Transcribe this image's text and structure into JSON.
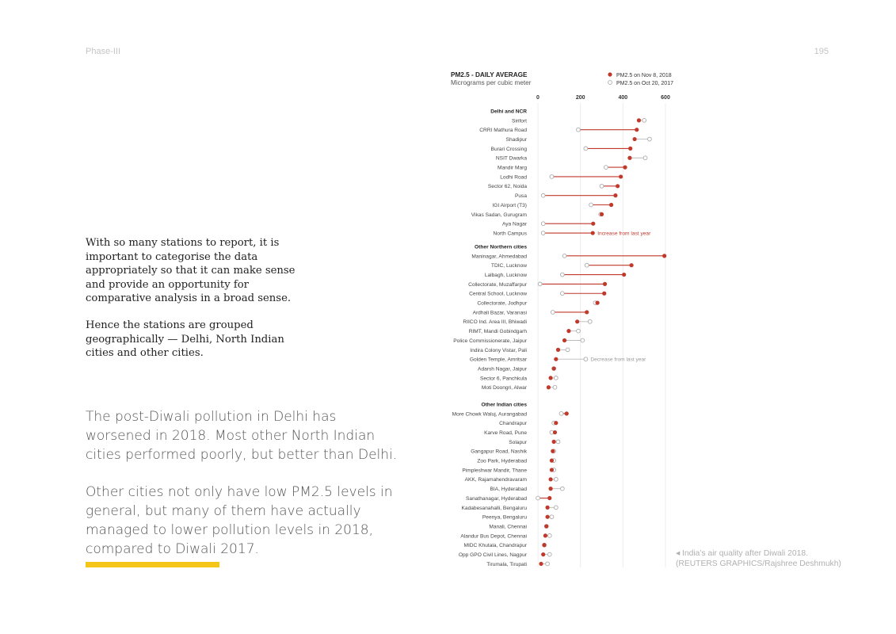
{
  "page": {
    "header_left": "Phase-III",
    "header_right": "195",
    "paragraph1": "With so many stations to report, it is important to categorise the data appropriately so that it can make sense and provide an opportunity for comparative analysis in a broad sense.",
    "paragraph2": "Hence the stations are grouped geographically — Delhi, North Indian cities and other cities.",
    "paragraph3": "The post-Diwali pollution in Delhi has worsened in 2018. Most other North Indian cities performed poorly, but better than Delhi.",
    "paragraph4": "Other cities not only have low PM2.5 levels in general, but many of them have actually managed to lower pollution levels in 2018, compared to Diwali 2017.",
    "caption_line1": "◂ India’s air quality after Diwali 2018.",
    "caption_line2": "(REUTERS GRAPHICS/Rajshree Deshmukh)",
    "colors": {
      "series_2018": "#c0392b",
      "series_2017": "#aaaaaa",
      "accent_bar": "#f5c518"
    }
  },
  "chart_data": {
    "type": "dumbbell",
    "title": "PM2.5 - DAILY AVERAGE",
    "subtitle": "Micrograms per cubic meter",
    "xlim": [
      0,
      600
    ],
    "xticks": [
      0,
      200,
      400,
      600
    ],
    "legend_position": "top-right",
    "series": [
      {
        "name": "PM2.5 on Nov 8, 2018",
        "color": "#c0392b",
        "filled": true
      },
      {
        "name": "PM2.5 on Oct 20, 2017",
        "color": "#aaaaaa",
        "filled": false
      }
    ],
    "annotations": [
      {
        "text": "Increase from last year",
        "station": "North Campus",
        "color": "#c0392b"
      },
      {
        "text": "Decrease from last year",
        "station": "Golden Temple, Amritsar",
        "color": "#999999"
      }
    ],
    "groups": [
      {
        "name": "Delhi and NCR",
        "stations": [
          {
            "name": "Sirifort",
            "y2018": 475,
            "y2017": 500
          },
          {
            "name": "CRRI Mathura Road",
            "y2018": 465,
            "y2017": 190
          },
          {
            "name": "Shadipur",
            "y2018": 455,
            "y2017": 525
          },
          {
            "name": "Burari Crossing",
            "y2018": 435,
            "y2017": 225
          },
          {
            "name": "NSIT Dwarka",
            "y2018": 432,
            "y2017": 505
          },
          {
            "name": "Mandir Marg",
            "y2018": 410,
            "y2017": 320
          },
          {
            "name": "Lodhi Road",
            "y2018": 390,
            "y2017": 65
          },
          {
            "name": "Sector 62, Noida",
            "y2018": 375,
            "y2017": 300
          },
          {
            "name": "Pusa",
            "y2018": 365,
            "y2017": 25
          },
          {
            "name": "IGI Airport (T3)",
            "y2018": 345,
            "y2017": 250
          },
          {
            "name": "Vikas Sadan, Gurugram",
            "y2018": 300,
            "y2017": 295
          },
          {
            "name": "Aya Nagar",
            "y2018": 260,
            "y2017": 25
          },
          {
            "name": "North Campus",
            "y2018": 258,
            "y2017": 25
          }
        ]
      },
      {
        "name": "Other Northern cities",
        "stations": [
          {
            "name": "Maninagar, Ahmedabad",
            "y2018": 595,
            "y2017": 125
          },
          {
            "name": "TDIC, Lucknow",
            "y2018": 440,
            "y2017": 230
          },
          {
            "name": "Lalbagh, Lucknow",
            "y2018": 405,
            "y2017": 115
          },
          {
            "name": "Collectorate, Muzaffarpur",
            "y2018": 315,
            "y2017": 10
          },
          {
            "name": "Central School, Lucknow",
            "y2018": 312,
            "y2017": 115
          },
          {
            "name": "Collectorate, Jodhpur",
            "y2018": 280,
            "y2017": 270
          },
          {
            "name": "Ardhali Bazar, Varanasi",
            "y2018": 230,
            "y2017": 70
          },
          {
            "name": "RIICO Ind. Area III, Bhiwadi",
            "y2018": 185,
            "y2017": 245
          },
          {
            "name": "RIMT, Mandi Gobindgarh",
            "y2018": 145,
            "y2017": 190
          },
          {
            "name": "Police Commissionerate, Jaipur",
            "y2018": 125,
            "y2017": 210
          },
          {
            "name": "Indira Colony Vistar, Pali",
            "y2018": 95,
            "y2017": 140
          },
          {
            "name": "Golden Temple, Amritsar",
            "y2018": 85,
            "y2017": 225
          },
          {
            "name": "Adarsh Nagar, Jaipur",
            "y2018": 75,
            "y2017": 75
          },
          {
            "name": "Sector 6, Panchkula",
            "y2018": 60,
            "y2017": 85
          },
          {
            "name": "Moti Doongri, Alwar",
            "y2018": 50,
            "y2017": 80
          }
        ]
      },
      {
        "name": "Other Indian cities",
        "stations": [
          {
            "name": "More Chowk Waluj, Aurangabad",
            "y2018": 135,
            "y2017": 110
          },
          {
            "name": "Chandrapur",
            "y2018": 85,
            "y2017": 75
          },
          {
            "name": "Karve Road, Pune",
            "y2018": 80,
            "y2017": 65
          },
          {
            "name": "Solapur",
            "y2018": 75,
            "y2017": 95
          },
          {
            "name": "Gangapur Road, Nashik",
            "y2018": 70,
            "y2017": 75
          },
          {
            "name": "Zoo Park, Hyderabad",
            "y2018": 65,
            "y2017": 75
          },
          {
            "name": "Pimpleshwar Mandir, Thane",
            "y2018": 65,
            "y2017": 75
          },
          {
            "name": "AKK, Rajamahendravaram",
            "y2018": 60,
            "y2017": 85
          },
          {
            "name": "BIA, Hyderabad",
            "y2018": 60,
            "y2017": 115
          },
          {
            "name": "Sanathanagar, Hyderabad",
            "y2018": 55,
            "y2017": 0
          },
          {
            "name": "Kadabesanahalli, Bengaluru",
            "y2018": 45,
            "y2017": 85
          },
          {
            "name": "Peenya, Bengaluru",
            "y2018": 45,
            "y2017": 65
          },
          {
            "name": "Manali, Chennai",
            "y2018": 40,
            "y2017": 40
          },
          {
            "name": "Alandur Bus Depot, Chennai",
            "y2018": 35,
            "y2017": 55
          },
          {
            "name": "MIDC Khutala, Chandrapur",
            "y2018": 30,
            "y2017": 30
          },
          {
            "name": "Opp GPO Civil Lines, Nagpur",
            "y2018": 25,
            "y2017": 55
          },
          {
            "name": "Tirumala, Tirupati",
            "y2018": 15,
            "y2017": 45
          }
        ]
      }
    ]
  }
}
